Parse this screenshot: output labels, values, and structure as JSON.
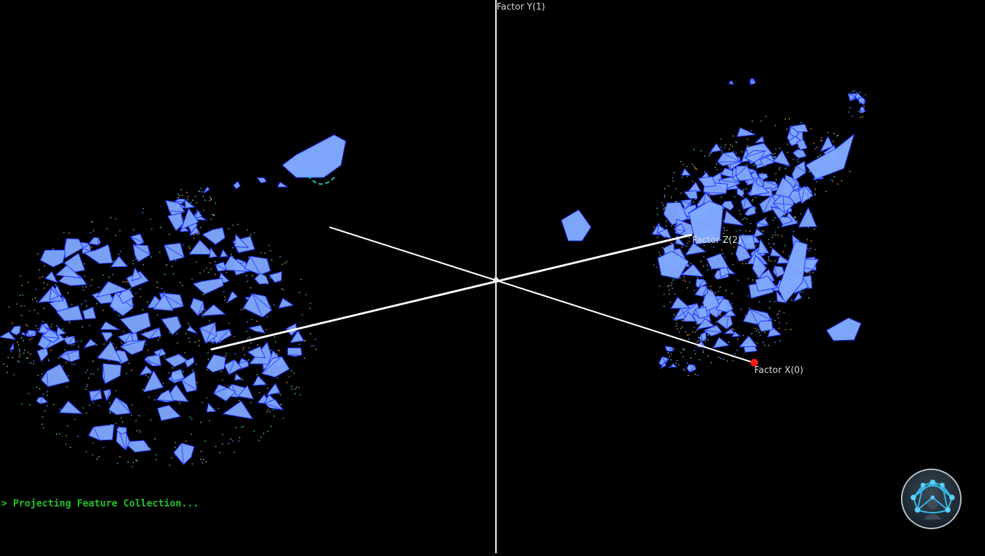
{
  "viewport": {
    "axes": {
      "x_label": "Factor X(0)",
      "y_label": "Factor Y(1)",
      "z_label": "Factor Z(2)"
    }
  },
  "console": {
    "status_text": "> Projecting Feature Collection..."
  },
  "colors": {
    "background": "#000000",
    "axis_line": "#ffffff",
    "hull_fill": "#7fa9ff",
    "hull_stroke": "#2233ff",
    "x_axis_marker": "#ff1a1a",
    "console_text": "#22c22a",
    "selection_arc": "#22c8b8"
  },
  "nav_widget": {
    "icon": "network-avatar-icon"
  }
}
